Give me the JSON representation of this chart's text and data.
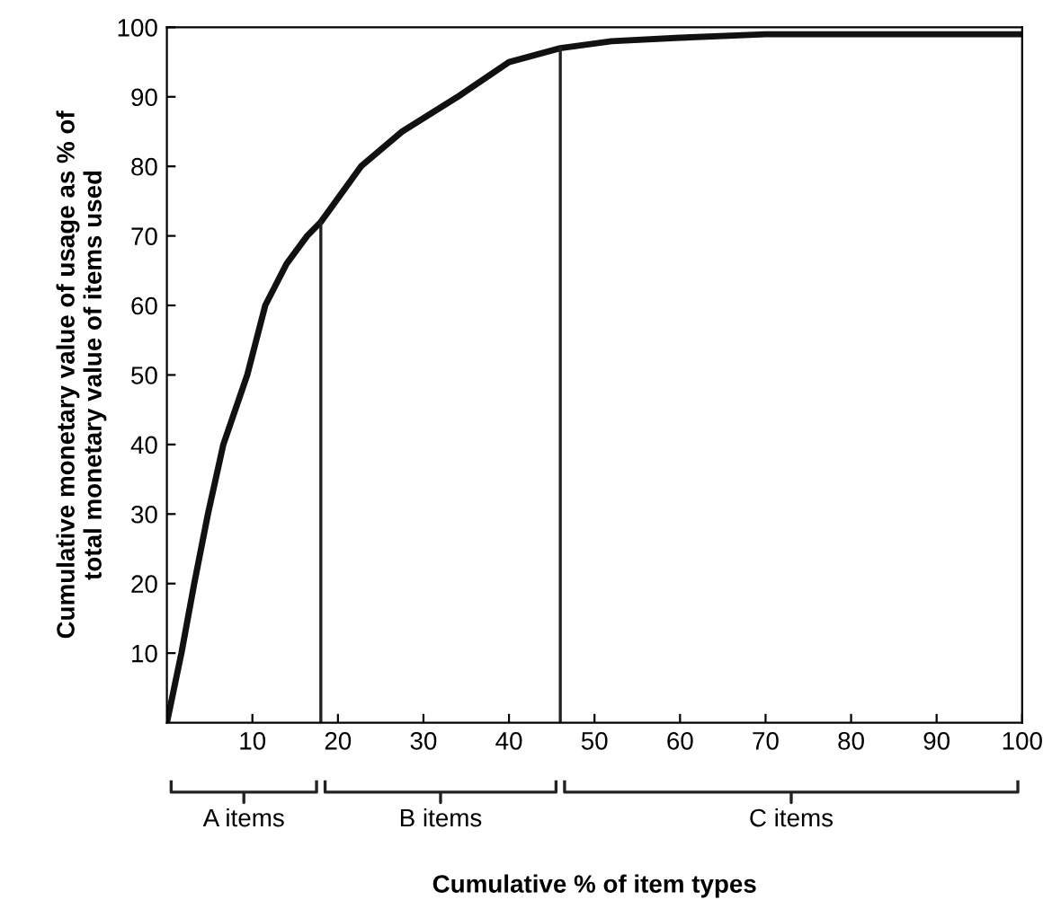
{
  "chart_data": {
    "type": "line",
    "xlabel": "Cumulative % of item types",
    "ylabel": "Cumulative monetary value of usage as % of\ntotal monetary value of items used",
    "x": [
      0,
      1.7,
      3.2,
      4.8,
      6.6,
      9.4,
      11.5,
      14,
      16.4,
      18,
      22.7,
      27.5,
      34,
      40,
      46,
      52,
      60,
      70,
      80,
      90,
      100
    ],
    "series": [
      {
        "color": "#111111",
        "values": [
          0,
          10,
          20,
          30,
          40,
          50,
          60,
          66,
          70,
          72,
          80,
          85,
          90,
          95,
          97,
          98,
          98.5,
          99,
          99,
          99,
          99
        ]
      }
    ],
    "xlim": [
      0,
      100
    ],
    "ylim": [
      0,
      100
    ],
    "xticks": [
      10,
      20,
      30,
      40,
      50,
      60,
      70,
      80,
      90,
      100
    ],
    "yticks": [
      10,
      20,
      30,
      40,
      50,
      60,
      70,
      80,
      90,
      100
    ],
    "ref_lines": [
      {
        "axis": "x",
        "value": 18,
        "color": "#222222"
      },
      {
        "axis": "x",
        "value": 46,
        "color": "#222222"
      }
    ],
    "annotations": [
      "A items",
      "B items",
      "C items"
    ],
    "grid": false,
    "legend": false,
    "marker": "none",
    "line_style": "solid"
  }
}
